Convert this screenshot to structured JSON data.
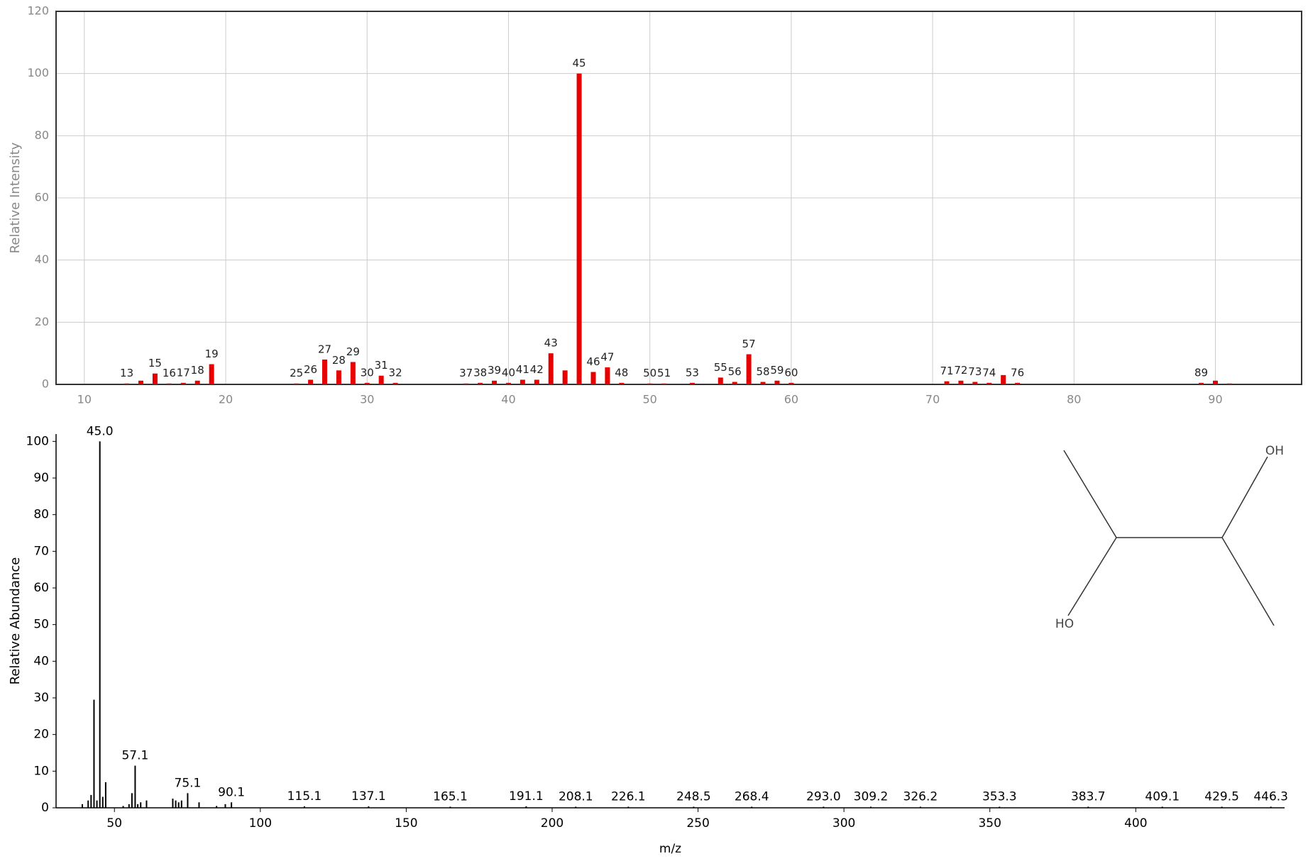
{
  "chart_data": [
    {
      "type": "bar",
      "y_label": "Relative Intensity",
      "color": "#e60000",
      "grid": true,
      "frame": true,
      "x": [
        13,
        14,
        15,
        16,
        17,
        18,
        19,
        25,
        26,
        27,
        28,
        29,
        30,
        31,
        32,
        37,
        38,
        39,
        40,
        41,
        42,
        43,
        44,
        45,
        46,
        47,
        48,
        50,
        51,
        53,
        55,
        56,
        57,
        58,
        59,
        60,
        71,
        72,
        73,
        74,
        75,
        76,
        89,
        90,
        91
      ],
      "values": [
        0.3,
        1.2,
        3.5,
        0.3,
        0.5,
        1.2,
        6.5,
        0.3,
        1.5,
        8,
        4.5,
        7.2,
        0.5,
        2.8,
        0.5,
        0.3,
        0.5,
        1.2,
        0.5,
        1.5,
        1.5,
        10,
        4.5,
        100,
        4,
        5.5,
        0.5,
        0.3,
        0.3,
        0.5,
        2.2,
        0.8,
        9.7,
        0.8,
        1.2,
        0.5,
        1,
        1.2,
        0.8,
        0.5,
        3,
        0.5,
        0.5,
        1.2,
        0.3
      ],
      "labels": [
        13,
        null,
        15,
        16,
        17,
        18,
        19,
        25,
        26,
        27,
        28,
        29,
        30,
        31,
        32,
        37,
        38,
        39,
        40,
        41,
        42,
        43,
        null,
        45,
        46,
        47,
        48,
        50,
        51,
        53,
        55,
        56,
        57,
        58,
        59,
        60,
        71,
        72,
        73,
        74,
        null,
        76,
        89,
        null,
        null
      ],
      "xlim": [
        8,
        96.1
      ],
      "xticks": [
        10,
        20,
        30,
        40,
        50,
        60,
        70,
        80,
        90
      ],
      "ylim": [
        0,
        120
      ],
      "yticks": [
        0,
        20,
        40,
        60,
        80,
        100,
        120
      ]
    },
    {
      "type": "bar",
      "y_label": "Relative Abundance",
      "x_label": "m/z",
      "color": "#000000",
      "grid": false,
      "frame": false,
      "x": [
        39,
        41,
        42,
        43,
        44,
        45,
        46,
        47,
        53,
        55,
        56,
        57.1,
        58,
        59,
        61,
        70,
        71,
        72,
        73,
        75.1,
        79,
        85,
        88,
        90.1,
        115.1,
        137.1,
        165.1,
        191.1,
        208.1,
        226.1,
        248.5,
        268.4,
        293.0,
        309.2,
        326.2,
        353.3,
        383.7,
        409.1,
        429.5,
        446.3
      ],
      "values": [
        1,
        2,
        3.5,
        29.5,
        2,
        100,
        3,
        7,
        0.5,
        1,
        4,
        11.5,
        1,
        1.5,
        2,
        2.5,
        2,
        1.5,
        2,
        4,
        1.5,
        0.5,
        1,
        1.5,
        0.4,
        0.4,
        0.3,
        0.4,
        0.3,
        0.3,
        0.3,
        0.3,
        0.3,
        0.3,
        0.3,
        0.3,
        0.3,
        0.3,
        0.3,
        0.3
      ],
      "labels": [
        null,
        null,
        null,
        null,
        null,
        "45.0",
        null,
        null,
        null,
        null,
        null,
        "57.1",
        null,
        null,
        null,
        null,
        null,
        null,
        null,
        "75.1",
        null,
        null,
        null,
        "90.1",
        "115.1",
        "137.1",
        "165.1",
        "191.1",
        "208.1",
        "226.1",
        "248.5",
        "268.4",
        "293.0",
        "309.2",
        "326.2",
        "353.3",
        "383.7",
        "409.1",
        "429.5",
        "446.3"
      ],
      "xlim": [
        30,
        451
      ],
      "xticks": [
        50,
        100,
        150,
        200,
        250,
        300,
        350,
        400
      ],
      "ylim": [
        0,
        102
      ],
      "yticks": [
        0,
        10,
        20,
        30,
        40,
        50,
        60,
        70,
        80,
        90,
        100
      ],
      "structure_labels": [
        "OH",
        "HO"
      ]
    }
  ]
}
